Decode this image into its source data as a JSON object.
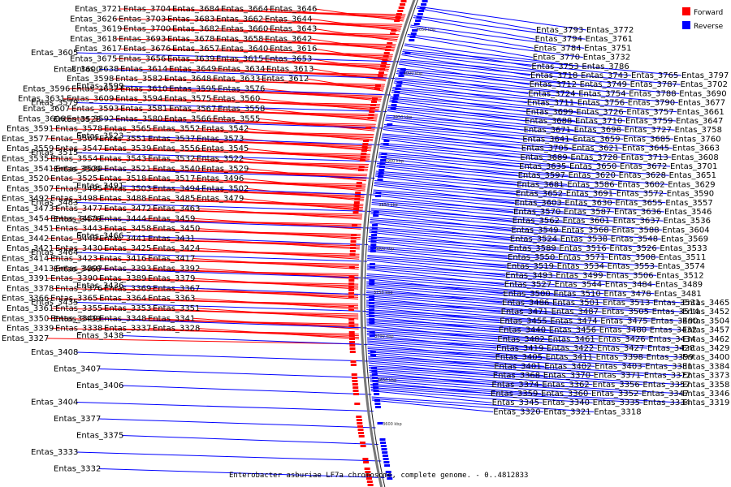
{
  "caption": "Enterobacter asburiae LF7a chromosome, complete genome. - 0..4812833",
  "legend": [
    {
      "label": "Forward",
      "color": "#ff0000"
    },
    {
      "label": "Reverse",
      "color": "#0000ff"
    }
  ],
  "ticks": [
    "4050 kbp",
    "4000 kbp",
    "3950 kbp",
    "3900 kbp",
    "3850 kbp",
    "3800 kbp",
    "3750 kbp",
    "3700 kbp",
    "3650 kbp",
    "3600 kbp"
  ],
  "forward_labels": [
    "Entas_3721",
    "Entas_3704",
    "Entas_3684",
    "Entas_3664",
    "Entas_3646",
    "Entas_3626",
    "Entas_3703",
    "Entas_3683",
    "Entas_3662",
    "Entas_3644",
    "Entas_3619",
    "Entas_3700",
    "Entas_3682",
    "Entas_3660",
    "Entas_3643",
    "Entas_3618",
    "Entas_3693",
    "Entas_3678",
    "Entas_3658",
    "Entas_3642",
    "Entas_3617",
    "Entas_3676",
    "Entas_3657",
    "Entas_3640",
    "Entas_3616",
    "Entas_3675",
    "Entas_3656",
    "Entas_3639",
    "Entas_3615",
    "Entas_3653",
    "Entas_3638",
    "Entas_3614",
    "Entas_3649",
    "Entas_3634",
    "Entas_3613",
    "Entas_3598",
    "Entas_3582",
    "Entas_3648",
    "Entas_3633",
    "Entas_3612",
    "Entas_3596",
    "Entas_3632",
    "Entas_3610",
    "Entas_3595",
    "Entas_3576",
    "Entas_3631",
    "Entas_3609",
    "Entas_3594",
    "Entas_3575",
    "Entas_3560",
    "Entas_3607",
    "Entas_3593",
    "Entas_3581",
    "Entas_3567",
    "Entas_3558",
    "Entas_3606",
    "Entas_3592",
    "Entas_3580",
    "Entas_3566",
    "Entas_3555",
    "Entas_3591",
    "Entas_3578",
    "Entas_3565",
    "Entas_3552",
    "Entas_3542",
    "Entas_3577",
    "Entas_3564",
    "Entas_3551",
    "Entas_3537",
    "Entas_3573",
    "Entas_3559",
    "Entas_3547",
    "Entas_3539",
    "Entas_3556",
    "Entas_3545",
    "Entas_3535",
    "Entas_3554",
    "Entas_3543",
    "Entas_3532",
    "Entas_3522",
    "Entas_3541",
    "Entas_3530",
    "Entas_3521",
    "Entas_3540",
    "Entas_3529",
    "Entas_3520",
    "Entas_3525",
    "Entas_3518",
    "Entas_3517",
    "Entas_3496",
    "Entas_3507",
    "Entas_3495",
    "Entas_3503",
    "Entas_3494",
    "Entas_3502",
    "Entas_3492",
    "Entas_3498",
    "Entas_3488",
    "Entas_3485",
    "Entas_3479",
    "Entas_3473",
    "Entas_3477",
    "Entas_3472",
    "Entas_3463",
    "Entas_3454",
    "Entas_3453",
    "Entas_3444",
    "Entas_3459",
    "Entas_3451",
    "Entas_3443",
    "Entas_3458",
    "Entas_3450",
    "Entas_3442",
    "Entas_3448",
    "Entas_3441",
    "Entas_3431",
    "Entas_3421",
    "Entas_3430",
    "Entas_3425",
    "Entas_3424",
    "Entas_3414",
    "Entas_3423",
    "Entas_3416",
    "Entas_3417",
    "Entas_3413",
    "Entas_3397",
    "Entas_3393",
    "Entas_3392",
    "Entas_3391",
    "Entas_3390",
    "Entas_3389",
    "Entas_3379",
    "Entas_3378",
    "Entas_3376",
    "Entas_3369",
    "Entas_3367",
    "Entas_3366",
    "Entas_3365",
    "Entas_3364",
    "Entas_3363",
    "Entas_3361",
    "Entas_3355",
    "Entas_3353",
    "Entas_3351",
    "Entas_3350",
    "Entas_3349",
    "Entas_3348",
    "Entas_3341",
    "Entas_3339",
    "Entas_3338",
    "Entas_3337",
    "Entas_3328",
    "Entas_3327"
  ],
  "reverse_labels": [
    "Entas_3793",
    "Entas_3772",
    "Entas_3794",
    "Entas_3761",
    "Entas_3784",
    "Entas_3751",
    "Entas_3770",
    "Entas_3732",
    "Entas_3753",
    "Entas_3786",
    "Entas_3718",
    "Entas_3743",
    "Entas_3765",
    "Entas_3797",
    "Entas_3712",
    "Entas_3749",
    "Entas_3787",
    "Entas_3702",
    "Entas_3724",
    "Entas_3754",
    "Entas_3788",
    "Entas_3690",
    "Entas_3711",
    "Entas_3756",
    "Entas_3790",
    "Entas_3677",
    "Entas_3699",
    "Entas_3726",
    "Entas_3757",
    "Entas_3661",
    "Entas_3688",
    "Entas_3710",
    "Entas_3759",
    "Entas_3647",
    "Entas_3671",
    "Entas_3698",
    "Entas_3727",
    "Entas_3758",
    "Entas_3641",
    "Entas_3659",
    "Entas_3685",
    "Entas_3760",
    "Entas_3705",
    "Entas_3621",
    "Entas_3645",
    "Entas_3663",
    "Entas_3689",
    "Entas_3728",
    "Entas_3713",
    "Entas_3608",
    "Entas_3635",
    "Entas_3650",
    "Entas_3672",
    "Entas_3701",
    "Entas_3597",
    "Entas_3620",
    "Entas_3628",
    "Entas_3651",
    "Entas_3681",
    "Entas_3586",
    "Entas_3602",
    "Entas_3629",
    "Entas_3652",
    "Entas_3691",
    "Entas_3572",
    "Entas_3590",
    "Entas_3603",
    "Entas_3630",
    "Entas_3655",
    "Entas_3557",
    "Entas_3570",
    "Entas_3587",
    "Entas_3636",
    "Entas_3546",
    "Entas_3562",
    "Entas_3601",
    "Entas_3637",
    "Entas_3536",
    "Entas_3549",
    "Entas_3568",
    "Entas_3588",
    "Entas_3604",
    "Entas_3524",
    "Entas_3538",
    "Entas_3548",
    "Entas_3569",
    "Entas_3589",
    "Entas_3516",
    "Entas_3526",
    "Entas_3533",
    "Entas_3550",
    "Entas_3571",
    "Entas_3508",
    "Entas_3511",
    "Entas_3519",
    "Entas_3534",
    "Entas_3553",
    "Entas_3574",
    "Entas_3493",
    "Entas_3499",
    "Entas_3506",
    "Entas_3512",
    "Entas_3527",
    "Entas_3544",
    "Entas_3484",
    "Entas_3489",
    "Entas_3500",
    "Entas_3510",
    "Entas_3478",
    "Entas_3481",
    "Entas_3486",
    "Entas_3501",
    "Entas_3513",
    "Entas_3531",
    "Entas_3465",
    "Entas_3471",
    "Entas_3487",
    "Entas_3505",
    "Entas_3514",
    "Entas_3452",
    "Entas_3455",
    "Entas_3474",
    "Entas_3475",
    "Entas_3490",
    "Entas_3504",
    "Entas_3440",
    "Entas_3456",
    "Entas_3480",
    "Entas_3432",
    "Entas_3457",
    "Entas_3482",
    "Entas_3461",
    "Entas_3426",
    "Entas_3434",
    "Entas_3462",
    "Entas_3419",
    "Entas_3422",
    "Entas_3427",
    "Entas_3428",
    "Entas_3429",
    "Entas_3405",
    "Entas_3411",
    "Entas_3398",
    "Entas_3399",
    "Entas_3400",
    "Entas_3401",
    "Entas_3402",
    "Entas_3403",
    "Entas_3381",
    "Entas_3384",
    "Entas_3368",
    "Entas_3370",
    "Entas_3371",
    "Entas_3372",
    "Entas_3373",
    "Entas_3374",
    "Entas_3362",
    "Entas_3356",
    "Entas_3357",
    "Entas_3358",
    "Entas_3359",
    "Entas_3360",
    "Entas_3352",
    "Entas_3347",
    "Entas_3346",
    "Entas_3345",
    "Entas_3340",
    "Entas_3335",
    "Entas_3334",
    "Entas_3319",
    "Entas_3320",
    "Entas_3321",
    "Entas_3318"
  ],
  "reverse_labels_left": [
    "Entas_3605",
    "Entas_3600",
    "Entas_3599",
    "Entas_3579",
    "Entas_3528",
    "Entas_3523",
    "Entas_3515",
    "Entas_3509",
    "Entas_3491",
    "Entas_3483",
    "Entas_3476",
    "Entas_3466",
    "Entas_3464",
    "Entas_3468",
    "Entas_3436",
    "Entas_3435",
    "Entas_3433",
    "Entas_3438",
    "Entas_3408",
    "Entas_3407",
    "Entas_3406",
    "Entas_3404",
    "Entas_3377",
    "Entas_3375",
    "Entas_3333",
    "Entas_3332"
  ]
}
